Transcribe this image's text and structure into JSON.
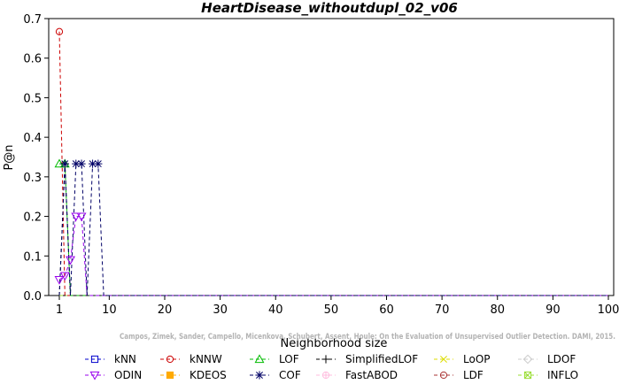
{
  "chart_data": {
    "type": "line",
    "title": "HeartDisease_withoutdupl_02_v06",
    "xlabel": "Neighborhood size",
    "ylabel": "P@n",
    "xlim": [
      1,
      100
    ],
    "ylim": [
      0,
      0.7
    ],
    "xticks": [
      1,
      10,
      20,
      30,
      40,
      50,
      60,
      70,
      80,
      90,
      100
    ],
    "yticks": [
      0.0,
      0.1,
      0.2,
      0.3,
      0.4,
      0.5,
      0.6,
      0.7
    ],
    "ytick_labels": [
      "0.0",
      "0.1",
      "0.2",
      "0.3",
      "0.4",
      "0.5",
      "0.6",
      "0.7"
    ],
    "legend_position": "bottom",
    "watermark": "Campos, Zimek, Sander, Campello, Micenkova, Schubert, Assent, Houle: On the Evaluation of Unsupervised Outlier Detection. DAMI, 2015.",
    "series": [
      {
        "name": "kNN",
        "color": "#0000cc",
        "marker": "square",
        "points": [
          [
            1,
            0.0
          ],
          [
            100,
            0.0
          ]
        ]
      },
      {
        "name": "kNNW",
        "color": "#cc0000",
        "marker": "circle",
        "points": [
          [
            1,
            0.667
          ],
          [
            2,
            0.0
          ],
          [
            100,
            0.0
          ]
        ]
      },
      {
        "name": "LOF",
        "color": "#00bb00",
        "marker": "triangle-up",
        "points": [
          [
            1,
            0.333
          ],
          [
            2,
            0.333
          ],
          [
            3,
            0.0
          ],
          [
            100,
            0.0
          ]
        ]
      },
      {
        "name": "SimplifiedLOF",
        "color": "#000000",
        "marker": "plus",
        "points": [
          [
            1,
            0.0
          ],
          [
            2,
            0.333
          ],
          [
            3,
            0.0
          ],
          [
            100,
            0.0
          ]
        ]
      },
      {
        "name": "LoOP",
        "color": "#dddd00",
        "marker": "x",
        "points": [
          [
            1,
            0.0
          ],
          [
            100,
            0.0
          ]
        ]
      },
      {
        "name": "LDOF",
        "color": "#cccccc",
        "marker": "diamond",
        "points": [
          [
            1,
            0.0
          ],
          [
            100,
            0.0
          ]
        ]
      },
      {
        "name": "ODIN",
        "color": "#9900ee",
        "marker": "triangle-down",
        "points": [
          [
            1,
            0.04
          ],
          [
            2,
            0.05
          ],
          [
            3,
            0.09
          ],
          [
            4,
            0.2
          ],
          [
            5,
            0.2
          ],
          [
            6,
            0.0
          ],
          [
            100,
            0.0
          ]
        ]
      },
      {
        "name": "KDEOS",
        "color": "#ffaa00",
        "marker": "square-filled",
        "points": [
          [
            1,
            0.0
          ],
          [
            100,
            0.0
          ]
        ]
      },
      {
        "name": "COF",
        "color": "#000066",
        "marker": "asterisk",
        "points": [
          [
            1,
            0.0
          ],
          [
            2,
            0.333
          ],
          [
            3,
            0.0
          ],
          [
            4,
            0.333
          ],
          [
            5,
            0.333
          ],
          [
            6,
            0.0
          ],
          [
            7,
            0.333
          ],
          [
            8,
            0.333
          ],
          [
            9,
            0.0
          ],
          [
            100,
            0.0
          ]
        ]
      },
      {
        "name": "FastABOD",
        "color": "#ffbbdd",
        "marker": "plus-circle",
        "points": [
          [
            1,
            0.0
          ],
          [
            100,
            0.0
          ]
        ]
      },
      {
        "name": "LDF",
        "color": "#aa3333",
        "marker": "circle-dot",
        "points": [
          [
            1,
            0.0
          ],
          [
            100,
            0.0
          ]
        ]
      },
      {
        "name": "INFLO",
        "color": "#99dd33",
        "marker": "square-x",
        "points": [
          [
            1,
            0.0
          ],
          [
            100,
            0.0
          ]
        ]
      }
    ]
  }
}
